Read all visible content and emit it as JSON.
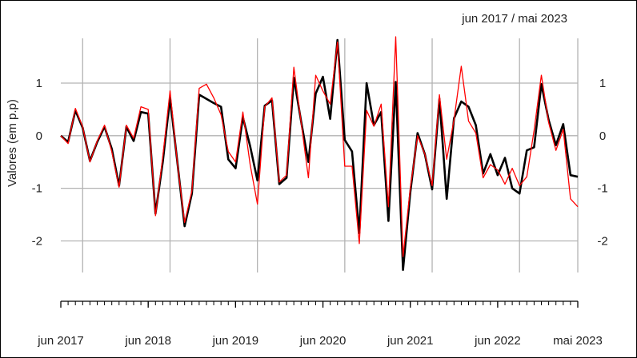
{
  "chart_data": {
    "type": "line",
    "title": "",
    "period_label": "jun 2017 / mai 2023",
    "ylabel": "Valores (em p.p)",
    "xlabel": "",
    "ylim": [
      -2.6,
      1.85
    ],
    "yticks": [
      -2,
      -1,
      0,
      1
    ],
    "ytick_labels": [
      "-2",
      "-1",
      "0",
      "1"
    ],
    "grid": true,
    "x_start": "2017-06",
    "x_end": "2023-05",
    "xtick_labels": [
      {
        "x": "2017-06",
        "label": "jun 2017"
      },
      {
        "x": "2018-06",
        "label": "jun 2018"
      },
      {
        "x": "2019-06",
        "label": "jun 2019"
      },
      {
        "x": "2020-06",
        "label": "jun 2020"
      },
      {
        "x": "2021-06",
        "label": "jun 2021"
      },
      {
        "x": "2022-06",
        "label": "jun 2022"
      },
      {
        "x": "2023-05",
        "label": "mai 2023"
      }
    ],
    "x": [
      "2017-06",
      "2017-07",
      "2017-08",
      "2017-09",
      "2017-10",
      "2017-11",
      "2017-12",
      "2018-01",
      "2018-02",
      "2018-03",
      "2018-04",
      "2018-05",
      "2018-06",
      "2018-07",
      "2018-08",
      "2018-09",
      "2018-10",
      "2018-11",
      "2018-12",
      "2019-01",
      "2019-02",
      "2019-03",
      "2019-04",
      "2019-05",
      "2019-06",
      "2019-07",
      "2019-08",
      "2019-09",
      "2019-10",
      "2019-11",
      "2019-12",
      "2020-01",
      "2020-02",
      "2020-03",
      "2020-04",
      "2020-05",
      "2020-06",
      "2020-07",
      "2020-08",
      "2020-09",
      "2020-10",
      "2020-11",
      "2020-12",
      "2021-01",
      "2021-02",
      "2021-03",
      "2021-04",
      "2021-05",
      "2021-06",
      "2021-07",
      "2021-08",
      "2021-09",
      "2021-10",
      "2021-11",
      "2021-12",
      "2022-01",
      "2022-02",
      "2022-03",
      "2022-04",
      "2022-05",
      "2022-06",
      "2022-07",
      "2022-08",
      "2022-09",
      "2022-10",
      "2022-11",
      "2022-12",
      "2023-01",
      "2023-02",
      "2023-03",
      "2023-04",
      "2023-05"
    ],
    "series": [
      {
        "color": "#000000",
        "values": [
          0.0,
          -0.12,
          0.48,
          0.15,
          -0.48,
          -0.12,
          0.17,
          -0.25,
          -0.95,
          0.17,
          -0.1,
          0.45,
          0.42,
          -1.48,
          -0.5,
          0.72,
          -0.5,
          -1.72,
          -1.1,
          0.78,
          0.7,
          0.62,
          0.55,
          -0.45,
          -0.62,
          0.35,
          -0.2,
          -0.85,
          0.57,
          0.67,
          -0.92,
          -0.8,
          1.1,
          0.27,
          -0.5,
          0.8,
          1.12,
          0.32,
          1.82,
          -0.08,
          -0.3,
          -1.85,
          1.0,
          0.2,
          0.45,
          -1.62,
          1.02,
          -2.55,
          -1.08,
          0.05,
          -0.35,
          -1.02,
          0.7,
          -1.2,
          0.33,
          0.65,
          0.55,
          0.2,
          -0.72,
          -0.35,
          -0.75,
          -0.42,
          -1.0,
          -1.1,
          -0.28,
          -0.22,
          0.98,
          0.3,
          -0.18,
          0.22,
          -0.75,
          -0.78
        ]
      },
      {
        "color": "#ff0000",
        "values": [
          0.0,
          -0.15,
          0.52,
          0.17,
          -0.5,
          -0.1,
          0.2,
          -0.3,
          -0.98,
          0.2,
          -0.05,
          0.55,
          0.5,
          -1.52,
          -0.4,
          0.85,
          -0.52,
          -1.65,
          -1.05,
          0.9,
          0.98,
          0.72,
          0.4,
          -0.3,
          -0.5,
          0.45,
          -0.55,
          -1.3,
          0.55,
          0.72,
          -0.88,
          -0.75,
          1.3,
          0.25,
          -0.8,
          1.15,
          0.85,
          0.6,
          1.78,
          -0.58,
          -0.58,
          -2.05,
          0.48,
          0.18,
          0.6,
          -1.35,
          1.88,
          -2.3,
          -1.0,
          0.0,
          -0.35,
          -0.95,
          0.78,
          -0.45,
          0.3,
          1.32,
          0.28,
          0.05,
          -0.8,
          -0.55,
          -0.65,
          -0.92,
          -0.62,
          -0.95,
          -0.78,
          0.1,
          1.15,
          0.25,
          -0.28,
          0.12,
          -1.2,
          -1.35
        ]
      }
    ]
  }
}
